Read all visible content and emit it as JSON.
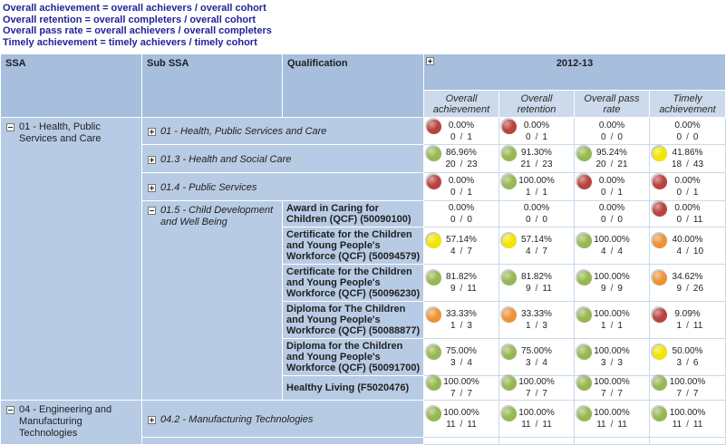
{
  "formulas": [
    "Overall achievement = overall achievers / overall cohort",
    "Overall retention = overall completers / overall cohort",
    "Overall pass rate = overall achievers / overall completers",
    "Timely achievement = timely achievers / timely cohort"
  ],
  "table": {
    "headers": {
      "ssa": "SSA",
      "sub_ssa": "Sub SSA",
      "qualification": "Qualification",
      "year": "2012-13"
    },
    "metric_headers": [
      "Overall achievement",
      "Overall retention",
      "Overall pass rate",
      "Timely achievement"
    ],
    "rows": [
      {
        "h": 30,
        "ssa": {
          "text": "01 - Health, Public Services and Care",
          "icon": "minus",
          "span": 9
        },
        "sub": {
          "text": "01 - Health, Public Services and Care",
          "icon": "plus",
          "colspan": 2
        },
        "cells": [
          {
            "c": "red",
            "p": "0.00%",
            "n": "0",
            "d": "1"
          },
          {
            "c": "red",
            "p": "0.00%",
            "n": "0",
            "d": "1"
          },
          {
            "c": null,
            "p": "0.00%",
            "n": "0",
            "d": "0"
          },
          {
            "c": null,
            "p": "0.00%",
            "n": "0",
            "d": "0"
          }
        ]
      },
      {
        "h": 31,
        "sub": {
          "text": "01.3 - Health and Social Care",
          "icon": "plus",
          "colspan": 2
        },
        "cells": [
          {
            "c": "green",
            "p": "86.96%",
            "n": "20",
            "d": "23"
          },
          {
            "c": "green",
            "p": "91.30%",
            "n": "21",
            "d": "23"
          },
          {
            "c": "green",
            "p": "95.24%",
            "n": "20",
            "d": "21"
          },
          {
            "c": "yellow",
            "p": "41.86%",
            "n": "18",
            "d": "43"
          }
        ]
      },
      {
        "h": 31,
        "sub": {
          "text": "01.4 - Public Services",
          "icon": "plus",
          "colspan": 2
        },
        "cells": [
          {
            "c": "red",
            "p": "0.00%",
            "n": "0",
            "d": "1"
          },
          {
            "c": "green",
            "p": "100.00%",
            "n": "1",
            "d": "1"
          },
          {
            "c": "red",
            "p": "0.00%",
            "n": "0",
            "d": "1"
          },
          {
            "c": "red",
            "p": "0.00%",
            "n": "0",
            "d": "1"
          }
        ]
      },
      {
        "h": 26,
        "sub": {
          "text": "01.5 - Child Development and Well Being",
          "icon": "minus",
          "span": 6
        },
        "qual": "Award in Caring for Children (QCF) (50090100)",
        "cells": [
          {
            "c": null,
            "p": "0.00%",
            "n": "0",
            "d": "0"
          },
          {
            "c": null,
            "p": "0.00%",
            "n": "0",
            "d": "0"
          },
          {
            "c": null,
            "p": "0.00%",
            "n": "0",
            "d": "0"
          },
          {
            "c": "red",
            "p": "0.00%",
            "n": "0",
            "d": "11"
          }
        ]
      },
      {
        "h": 36,
        "qual": "Certificate for the Children and Young People's Workforce (QCF) (50094579)",
        "cells": [
          {
            "c": "yellow",
            "p": "57.14%",
            "n": "4",
            "d": "7"
          },
          {
            "c": "yellow",
            "p": "57.14%",
            "n": "4",
            "d": "7"
          },
          {
            "c": "green",
            "p": "100.00%",
            "n": "4",
            "d": "4"
          },
          {
            "c": "orange",
            "p": "40.00%",
            "n": "4",
            "d": "10"
          }
        ]
      },
      {
        "h": 37,
        "qual": "Certificate for the Children and Young People's Workforce (QCF) (50096230)",
        "cells": [
          {
            "c": "green",
            "p": "81.82%",
            "n": "9",
            "d": "11"
          },
          {
            "c": "green",
            "p": "81.82%",
            "n": "9",
            "d": "11"
          },
          {
            "c": "green",
            "p": "100.00%",
            "n": "9",
            "d": "9"
          },
          {
            "c": "orange",
            "p": "34.62%",
            "n": "9",
            "d": "26"
          }
        ]
      },
      {
        "h": 38,
        "qual": "Diploma for The Children and Young People's Workforce (QCF) (50088877)",
        "cells": [
          {
            "c": "orange",
            "p": "33.33%",
            "n": "1",
            "d": "3"
          },
          {
            "c": "orange",
            "p": "33.33%",
            "n": "1",
            "d": "3"
          },
          {
            "c": "green",
            "p": "100.00%",
            "n": "1",
            "d": "1"
          },
          {
            "c": "red",
            "p": "9.09%",
            "n": "1",
            "d": "11"
          }
        ]
      },
      {
        "h": 38,
        "qual": "Diploma for the Children and Young People's Workforce (QCF) (50091700)",
        "cells": [
          {
            "c": "green",
            "p": "75.00%",
            "n": "3",
            "d": "4"
          },
          {
            "c": "green",
            "p": "75.00%",
            "n": "3",
            "d": "4"
          },
          {
            "c": "green",
            "p": "100.00%",
            "n": "3",
            "d": "3"
          },
          {
            "c": "yellow",
            "p": "50.00%",
            "n": "3",
            "d": "6"
          }
        ]
      },
      {
        "h": 27,
        "qual": "Healthy Living (F5020476)",
        "cells": [
          {
            "c": "green",
            "p": "100.00%",
            "n": "7",
            "d": "7"
          },
          {
            "c": "green",
            "p": "100.00%",
            "n": "7",
            "d": "7"
          },
          {
            "c": "green",
            "p": "100.00%",
            "n": "7",
            "d": "7"
          },
          {
            "c": "green",
            "p": "100.00%",
            "n": "7",
            "d": "7"
          }
        ]
      },
      {
        "h": 41,
        "ssa": {
          "text": "04 - Engineering and Manufacturing Technologies",
          "icon": "minus",
          "span": 2
        },
        "sub": {
          "text": "04.2 - Manufacturing Technologies",
          "icon": "plus",
          "colspan": 2
        },
        "cells": [
          {
            "c": "green",
            "p": "100.00%",
            "n": "11",
            "d": "11"
          },
          {
            "c": "green",
            "p": "100.00%",
            "n": "11",
            "d": "11"
          },
          {
            "c": "green",
            "p": "100.00%",
            "n": "11",
            "d": "11"
          },
          {
            "c": "green",
            "p": "100.00%",
            "n": "11",
            "d": "11"
          }
        ]
      },
      {
        "h": 8,
        "sub": {
          "text": "",
          "colspan": 2
        },
        "cells": [
          {},
          {},
          {},
          {}
        ]
      }
    ]
  },
  "colors": {
    "red": "#b9433e",
    "green": "#96b851",
    "yellow": "#f2e500",
    "orange": "#ee9335",
    "header_blue": "#a7bedd",
    "subheader_blue": "#ccdaeb",
    "row_blue": "#b8cbe4",
    "formula_text": "#22229b"
  }
}
